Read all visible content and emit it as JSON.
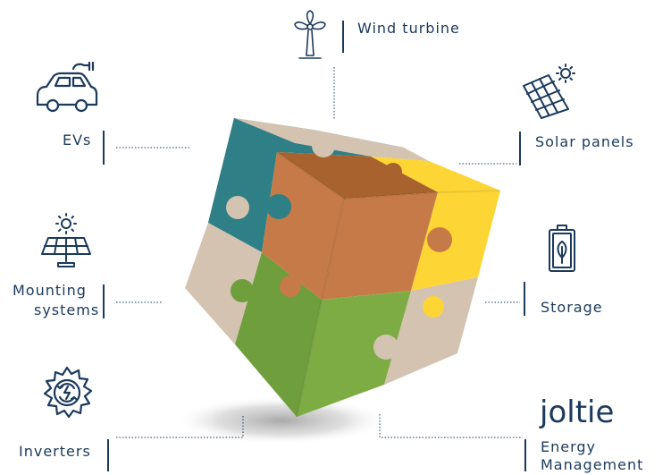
{
  "brand": {
    "logo": "joltie"
  },
  "colors": {
    "navy": "#1b3a5c",
    "teal": "#2e7f86",
    "tan": "#d4c3b1",
    "brown_dark": "#a8622e",
    "brown_light": "#c67a47",
    "yellow": "#fdd534",
    "yellow_dark": "#f2c100",
    "green": "#6f9e3c",
    "green_light": "#7dac44"
  },
  "nodes": [
    {
      "id": "wind",
      "label": "Wind turbine",
      "icon": "wind-turbine-icon"
    },
    {
      "id": "evs",
      "label": "EVs",
      "icon": "electric-car-icon"
    },
    {
      "id": "solar",
      "label": "Solar panels",
      "icon": "solar-panel-icon"
    },
    {
      "id": "mounting",
      "label_lines": [
        "Mounting",
        "systems"
      ],
      "icon": "mounting-system-icon"
    },
    {
      "id": "storage",
      "label": "Storage",
      "icon": "battery-icon"
    },
    {
      "id": "inverters",
      "label": "Inverters",
      "icon": "inverter-icon"
    },
    {
      "id": "energy",
      "label_lines": [
        "Energy",
        "Management"
      ],
      "icon": "joltie-logo"
    }
  ]
}
